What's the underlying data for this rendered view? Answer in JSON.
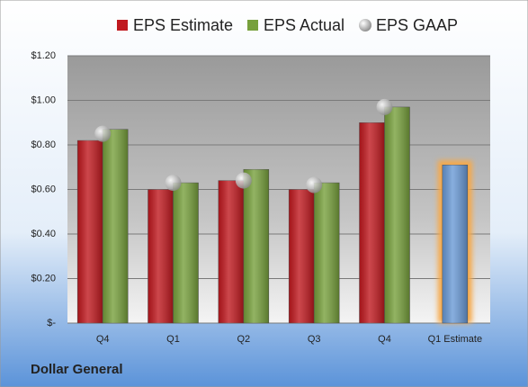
{
  "chart_data": {
    "type": "bar",
    "footer": "Dollar General",
    "categories": [
      "Q4",
      "Q1",
      "Q2",
      "Q3",
      "Q4",
      "Q1 Estimate"
    ],
    "series": [
      {
        "name": "EPS Estimate",
        "color": "#c0191f",
        "colors": [
          "#c0191f",
          "#c0191f",
          "#c0191f",
          "#c0191f",
          "#c0191f",
          "#6a9ad6"
        ],
        "values": [
          0.82,
          0.6,
          0.64,
          0.6,
          0.9,
          0.71
        ]
      },
      {
        "name": "EPS Actual",
        "color": "#77a03c",
        "values": [
          0.87,
          0.63,
          0.69,
          0.63,
          0.97,
          null
        ]
      },
      {
        "name": "EPS GAAP",
        "color": "#b4b4b4",
        "marker": "circle",
        "values": [
          0.85,
          0.63,
          0.64,
          0.62,
          0.97,
          null
        ]
      }
    ],
    "glow_color": "#f6a94a",
    "ylim": [
      0,
      1.2
    ],
    "yticks": [
      {
        "value": 0,
        "label": "$-"
      },
      {
        "value": 0.2,
        "label": "$0.20"
      },
      {
        "value": 0.4,
        "label": "$0.40"
      },
      {
        "value": 0.6,
        "label": "$0.60"
      },
      {
        "value": 0.8,
        "label": "$0.80"
      },
      {
        "value": 1.0,
        "label": "$1.00"
      },
      {
        "value": 1.2,
        "label": "$1.20"
      }
    ],
    "grid": true
  }
}
